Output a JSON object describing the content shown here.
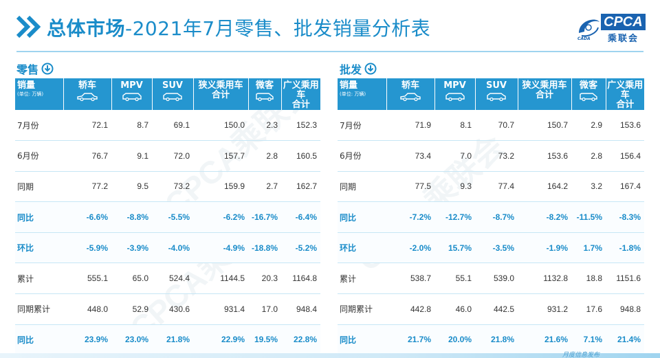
{
  "header": {
    "title_bold": "总体市场",
    "title_rest": "-2021年7月零售、批发销量分析表",
    "logo_text": "CPCA",
    "logo_sub": "乘联会",
    "logo_mark": "CADA"
  },
  "columns": {
    "first": "销量",
    "first_unit": "(单位: 万辆)",
    "c1": "轿车",
    "c2": "MPV",
    "c3": "SUV",
    "c4_line1": "狭义乘用车",
    "c4_line2": "合计",
    "c5": "微客",
    "c6": "广义乘用车",
    "c6_line2": "合计"
  },
  "retail": {
    "label": "零售",
    "rows": [
      {
        "label": "7月份",
        "v": [
          "72.1",
          "8.7",
          "69.1",
          "150.0",
          "2.3",
          "152.3"
        ]
      },
      {
        "label": "6月份",
        "v": [
          "76.7",
          "9.1",
          "72.0",
          "157.7",
          "2.8",
          "160.5"
        ]
      },
      {
        "label": "同期",
        "v": [
          "77.2",
          "9.5",
          "73.2",
          "159.9",
          "2.7",
          "162.7"
        ]
      },
      {
        "label": "同比",
        "v": [
          "-6.6%",
          "-8.8%",
          "-5.5%",
          "-6.2%",
          "-16.7%",
          "-6.4%"
        ]
      },
      {
        "label": "环比",
        "v": [
          "-5.9%",
          "-3.9%",
          "-4.0%",
          "-4.9%",
          "-18.8%",
          "-5.2%"
        ]
      },
      {
        "label": "累计",
        "v": [
          "555.1",
          "65.0",
          "524.4",
          "1144.5",
          "20.3",
          "1164.8"
        ]
      },
      {
        "label": "同期累计",
        "v": [
          "448.0",
          "52.9",
          "430.6",
          "931.4",
          "17.0",
          "948.4"
        ]
      },
      {
        "label": "同比",
        "v": [
          "23.9%",
          "23.0%",
          "21.8%",
          "22.9%",
          "19.5%",
          "22.8%"
        ]
      }
    ]
  },
  "wholesale": {
    "label": "批发",
    "rows": [
      {
        "label": "7月份",
        "v": [
          "71.9",
          "8.1",
          "70.7",
          "150.7",
          "2.9",
          "153.6"
        ]
      },
      {
        "label": "6月份",
        "v": [
          "73.4",
          "7.0",
          "73.2",
          "153.6",
          "2.8",
          "156.4"
        ]
      },
      {
        "label": "同期",
        "v": [
          "77.5",
          "9.3",
          "77.4",
          "164.2",
          "3.2",
          "167.4"
        ]
      },
      {
        "label": "同比",
        "v": [
          "-7.2%",
          "-12.7%",
          "-8.7%",
          "-8.2%",
          "-11.5%",
          "-8.3%"
        ]
      },
      {
        "label": "环比",
        "v": [
          "-2.0%",
          "15.7%",
          "-3.5%",
          "-1.9%",
          "1.7%",
          "-1.8%"
        ]
      },
      {
        "label": "累计",
        "v": [
          "538.7",
          "55.1",
          "539.0",
          "1132.8",
          "18.8",
          "1151.6"
        ]
      },
      {
        "label": "同期累计",
        "v": [
          "442.8",
          "46.0",
          "442.5",
          "931.2",
          "17.6",
          "948.8"
        ]
      },
      {
        "label": "同比",
        "v": [
          "21.7%",
          "20.0%",
          "21.8%",
          "21.6%",
          "7.1%",
          "21.4%"
        ]
      }
    ]
  },
  "footer": {
    "text": "月度信息发布"
  },
  "colors": {
    "accent": "#1a8cc9",
    "header_bg": "#2596d0",
    "logo_blue": "#1a63b0"
  },
  "icons": [
    "double-chevron-icon",
    "down-arrow-circle-icon",
    "sedan-icon",
    "mpv-icon",
    "suv-icon",
    "minivan-icon"
  ]
}
